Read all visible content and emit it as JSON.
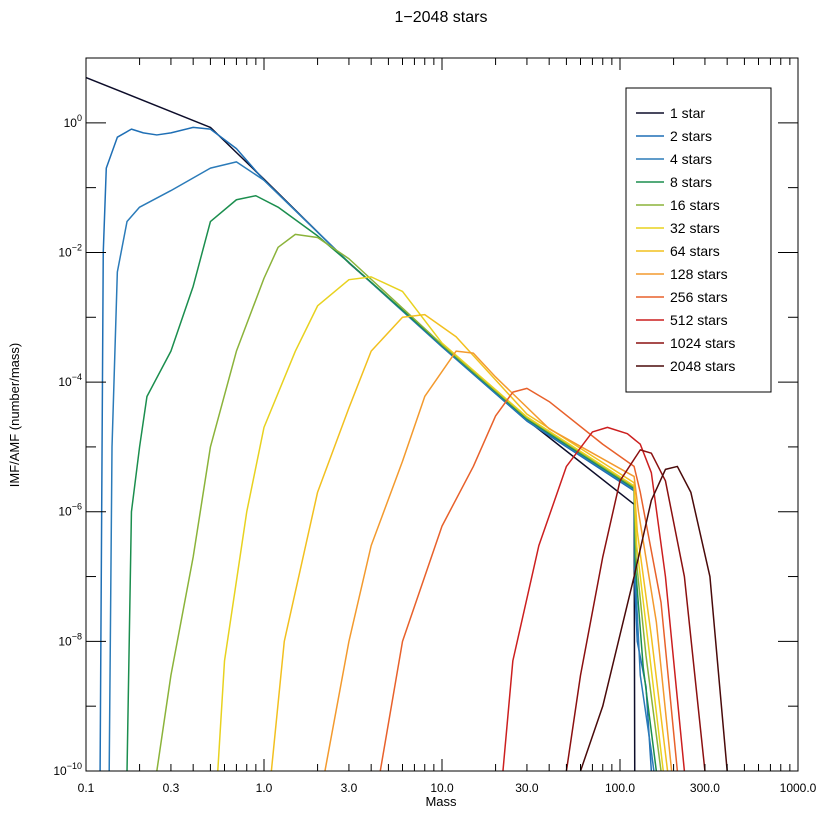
{
  "chart_data": {
    "type": "line",
    "title": "1−2048 stars",
    "xlabel": "Mass",
    "ylabel": "IMF/AMF (number/mass)",
    "xscale": "log",
    "yscale": "log",
    "xlim": [
      0.1,
      1000
    ],
    "ylim": [
      1e-10,
      10
    ],
    "grid": false,
    "legend_position": "top-right",
    "x_ticks": [
      {
        "value": 0.1,
        "label": "0.1"
      },
      {
        "value": 0.3,
        "label": "0.3"
      },
      {
        "value": 1,
        "label": "1.0"
      },
      {
        "value": 3,
        "label": "3.0"
      },
      {
        "value": 10,
        "label": "10.0"
      },
      {
        "value": 30,
        "label": "30.0"
      },
      {
        "value": 100,
        "label": "100.0"
      },
      {
        "value": 300,
        "label": "300.0"
      },
      {
        "value": 1000,
        "label": "1000.0"
      }
    ],
    "y_ticks": [
      {
        "value": 1,
        "base": "10",
        "exp": "0"
      },
      {
        "value": 0.01,
        "base": "10",
        "exp": "−2"
      },
      {
        "value": 0.0001,
        "base": "10",
        "exp": "−4"
      },
      {
        "value": 1e-06,
        "base": "10",
        "exp": "−6"
      },
      {
        "value": 1e-08,
        "base": "10",
        "exp": "−8"
      },
      {
        "value": 1e-10,
        "base": "10",
        "exp": "−10"
      }
    ],
    "series": [
      {
        "name": "1 star",
        "color": "#0d0d2a",
        "points": [
          [
            0.1,
            5.0
          ],
          [
            0.5,
            0.85
          ],
          [
            1.0,
            0.135
          ],
          [
            3.0,
            0.0069
          ],
          [
            10.0,
            0.00037
          ],
          [
            30.0,
            2.6e-05
          ],
          [
            120.0,
            1.3e-06
          ],
          [
            121.0,
            1e-10
          ]
        ]
      },
      {
        "name": "2 stars",
        "color": "#1f6fb5",
        "points": [
          [
            0.12,
            1e-10
          ],
          [
            0.125,
            0.01
          ],
          [
            0.13,
            0.2
          ],
          [
            0.15,
            0.6
          ],
          [
            0.18,
            0.8
          ],
          [
            0.21,
            0.7
          ],
          [
            0.25,
            0.65
          ],
          [
            0.3,
            0.7
          ],
          [
            0.4,
            0.85
          ],
          [
            0.5,
            0.8
          ],
          [
            0.7,
            0.4
          ],
          [
            1.0,
            0.13
          ],
          [
            3.0,
            0.007
          ],
          [
            10.0,
            0.00035
          ],
          [
            30.0,
            2.5e-05
          ],
          [
            120.0,
            2.1e-06
          ],
          [
            121.0,
            8e-08
          ],
          [
            125.0,
            1e-08
          ],
          [
            140.0,
            2e-09
          ],
          [
            150.0,
            1e-10
          ]
        ]
      },
      {
        "name": "4 stars",
        "color": "#2b7bb9",
        "points": [
          [
            0.135,
            1e-10
          ],
          [
            0.14,
            1e-05
          ],
          [
            0.15,
            0.005
          ],
          [
            0.17,
            0.03
          ],
          [
            0.2,
            0.05
          ],
          [
            0.3,
            0.09
          ],
          [
            0.5,
            0.2
          ],
          [
            0.7,
            0.25
          ],
          [
            1.0,
            0.13
          ],
          [
            3.0,
            0.007
          ],
          [
            10.0,
            0.00036
          ],
          [
            30.0,
            2.6e-05
          ],
          [
            120.0,
            2.2e-06
          ],
          [
            122.0,
            1e-07
          ],
          [
            130.0,
            3e-09
          ],
          [
            150.0,
            2e-10
          ],
          [
            155.0,
            1e-10
          ]
        ]
      },
      {
        "name": "8 stars",
        "color": "#1b8e4e",
        "points": [
          [
            0.17,
            1e-10
          ],
          [
            0.18,
            1e-06
          ],
          [
            0.2,
            1e-05
          ],
          [
            0.22,
            6e-05
          ],
          [
            0.3,
            0.0003
          ],
          [
            0.4,
            0.003
          ],
          [
            0.5,
            0.03
          ],
          [
            0.7,
            0.065
          ],
          [
            0.9,
            0.075
          ],
          [
            1.2,
            0.05
          ],
          [
            2.0,
            0.018
          ],
          [
            3.0,
            0.007
          ],
          [
            10.0,
            0.00037
          ],
          [
            30.0,
            2.7e-05
          ],
          [
            120.0,
            2.3e-06
          ],
          [
            122.0,
            1.5e-07
          ],
          [
            135.0,
            4e-09
          ],
          [
            160.0,
            1e-10
          ]
        ]
      },
      {
        "name": "16 stars",
        "color": "#8bb33a",
        "points": [
          [
            0.25,
            1e-10
          ],
          [
            0.3,
            3e-09
          ],
          [
            0.4,
            2e-07
          ],
          [
            0.5,
            1e-05
          ],
          [
            0.7,
            0.0003
          ],
          [
            1.0,
            0.004
          ],
          [
            1.2,
            0.012
          ],
          [
            1.5,
            0.019
          ],
          [
            2.0,
            0.017
          ],
          [
            3.0,
            0.008
          ],
          [
            10.0,
            0.00038
          ],
          [
            30.0,
            2.8e-05
          ],
          [
            120.0,
            2.4e-06
          ],
          [
            123.0,
            2e-07
          ],
          [
            140.0,
            6e-09
          ],
          [
            170.0,
            1e-10
          ]
        ]
      },
      {
        "name": "32 stars",
        "color": "#e8d21f",
        "points": [
          [
            0.55,
            1e-10
          ],
          [
            0.6,
            5e-09
          ],
          [
            0.8,
            1e-06
          ],
          [
            1.0,
            2e-05
          ],
          [
            1.5,
            0.0003
          ],
          [
            2.0,
            0.0015
          ],
          [
            3.0,
            0.0038
          ],
          [
            4.0,
            0.0042
          ],
          [
            6.0,
            0.0025
          ],
          [
            10.0,
            0.0004
          ],
          [
            30.0,
            2.9e-05
          ],
          [
            120.0,
            2.5e-06
          ],
          [
            124.0,
            3e-07
          ],
          [
            145.0,
            8e-09
          ],
          [
            175.0,
            1e-10
          ]
        ]
      },
      {
        "name": "64 stars",
        "color": "#f2c01f",
        "points": [
          [
            1.1,
            1e-10
          ],
          [
            1.3,
            1e-08
          ],
          [
            2.0,
            2e-06
          ],
          [
            3.0,
            4e-05
          ],
          [
            4.0,
            0.0003
          ],
          [
            6.0,
            0.001
          ],
          [
            8.0,
            0.0011
          ],
          [
            12.0,
            0.0005
          ],
          [
            30.0,
            3.2e-05
          ],
          [
            120.0,
            2.8e-06
          ],
          [
            125.0,
            5e-07
          ],
          [
            150.0,
            1.2e-08
          ],
          [
            185.0,
            1e-10
          ]
        ]
      },
      {
        "name": "128 stars",
        "color": "#f39a2e",
        "points": [
          [
            2.2,
            1e-10
          ],
          [
            3.0,
            1e-08
          ],
          [
            4.0,
            3e-07
          ],
          [
            6.0,
            6e-06
          ],
          [
            8.0,
            6e-05
          ],
          [
            12.0,
            0.0003
          ],
          [
            15.0,
            0.00028
          ],
          [
            20.0,
            0.00012
          ],
          [
            40.0,
            1.9e-05
          ],
          [
            120.0,
            3.5e-06
          ],
          [
            127.0,
            1e-06
          ],
          [
            160.0,
            2e-08
          ],
          [
            195.0,
            1e-10
          ]
        ]
      },
      {
        "name": "256 stars",
        "color": "#e8612b",
        "points": [
          [
            4.5,
            1e-10
          ],
          [
            6.0,
            1e-08
          ],
          [
            10.0,
            6e-07
          ],
          [
            15.0,
            5e-06
          ],
          [
            20.0,
            3e-05
          ],
          [
            25.0,
            7e-05
          ],
          [
            30.0,
            8e-05
          ],
          [
            40.0,
            5e-05
          ],
          [
            80.0,
            1.1e-05
          ],
          [
            120.0,
            5e-06
          ],
          [
            130.0,
            2e-06
          ],
          [
            170.0,
            4e-08
          ],
          [
            210.0,
            1e-10
          ]
        ]
      },
      {
        "name": "512 stars",
        "color": "#cc1f1f",
        "points": [
          [
            22.0,
            1e-10
          ],
          [
            25.0,
            5e-09
          ],
          [
            35.0,
            3e-07
          ],
          [
            50.0,
            5e-06
          ],
          [
            70.0,
            1.7e-05
          ],
          [
            85.0,
            2e-05
          ],
          [
            110.0,
            1.6e-05
          ],
          [
            130.0,
            1.1e-05
          ],
          [
            150.0,
            4e-06
          ],
          [
            180.0,
            1e-07
          ],
          [
            230.0,
            1e-10
          ]
        ]
      },
      {
        "name": "1024 stars",
        "color": "#8b1010",
        "points": [
          [
            50.0,
            1e-10
          ],
          [
            60.0,
            3e-09
          ],
          [
            80.0,
            2e-07
          ],
          [
            100.0,
            3e-06
          ],
          [
            130.0,
            9e-06
          ],
          [
            150.0,
            8e-06
          ],
          [
            180.0,
            3e-06
          ],
          [
            230.0,
            1e-07
          ],
          [
            300.0,
            1e-10
          ]
        ]
      },
      {
        "name": "2048 stars",
        "color": "#4a0a0a",
        "points": [
          [
            60.0,
            1e-10
          ],
          [
            80.0,
            1e-09
          ],
          [
            120.0,
            1e-07
          ],
          [
            150.0,
            1.5e-06
          ],
          [
            180.0,
            4.5e-06
          ],
          [
            210.0,
            5e-06
          ],
          [
            250.0,
            2e-06
          ],
          [
            320.0,
            1e-07
          ],
          [
            400.0,
            1e-10
          ]
        ]
      }
    ]
  }
}
